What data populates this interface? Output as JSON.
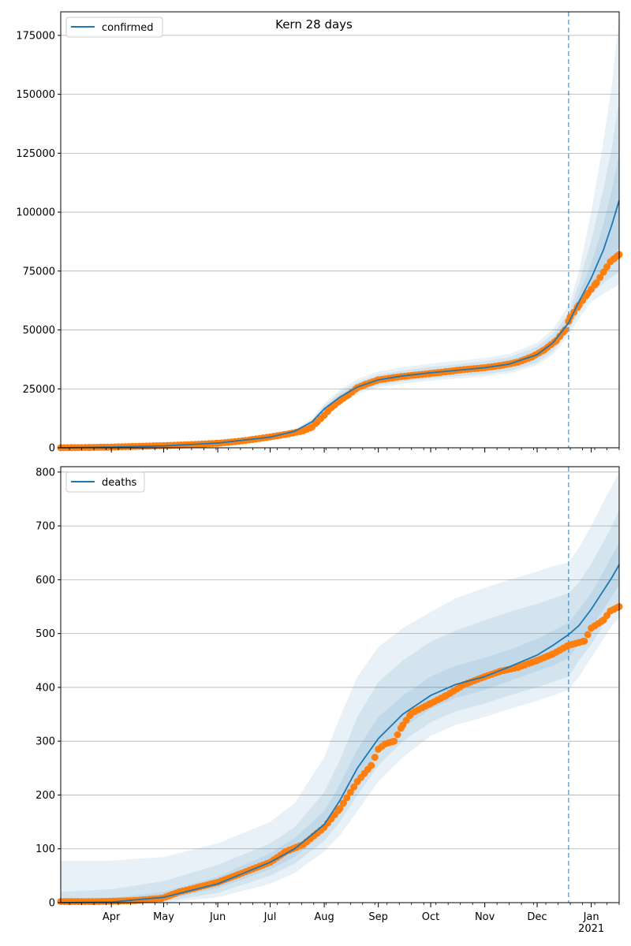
{
  "chart_data": [
    {
      "type": "line",
      "title": "Kern 28 days",
      "xlabel": "",
      "ylabel": "",
      "legend": {
        "position": "top-left",
        "entries": [
          "confirmed"
        ]
      },
      "grid": {
        "y": true,
        "x": false
      },
      "xlim": [
        "2020-03-03",
        "2021-01-17"
      ],
      "ylim": [
        0,
        185000
      ],
      "yticks": [
        0,
        25000,
        50000,
        75000,
        100000,
        125000,
        150000,
        175000
      ],
      "yticklabels": [
        "0",
        "25000",
        "50000",
        "75000",
        "100000",
        "125000",
        "150000",
        "175000"
      ],
      "forecast_start": "2020-12-19",
      "series": [
        {
          "name": "confirmed",
          "kind": "model",
          "color": "#1f77b4",
          "x": [
            "2020-03-03",
            "2020-04-01",
            "2020-05-01",
            "2020-06-01",
            "2020-07-01",
            "2020-07-15",
            "2020-07-25",
            "2020-08-01",
            "2020-08-10",
            "2020-08-20",
            "2020-09-01",
            "2020-09-15",
            "2020-10-01",
            "2020-10-15",
            "2020-11-01",
            "2020-11-15",
            "2020-12-01",
            "2020-12-10",
            "2020-12-19",
            "2020-12-25",
            "2021-01-01",
            "2021-01-08",
            "2021-01-13",
            "2021-01-17"
          ],
          "y": [
            0,
            300,
            800,
            2000,
            4500,
            7000,
            11000,
            16500,
            21500,
            25800,
            28800,
            30500,
            31800,
            32800,
            34000,
            35500,
            39500,
            44500,
            53000,
            62000,
            72000,
            84000,
            95000,
            105000
          ],
          "bands": [
            {
              "lower": [
                0,
                250,
                700,
                1750,
                4000,
                6200,
                9800,
                14500,
                19000,
                22800,
                25600,
                27200,
                28400,
                29300,
                30300,
                31500,
                35000,
                39500,
                47500,
                55000,
                62000,
                65500,
                67500,
                69000
              ],
              "upper": [
                0,
                350,
                900,
                2300,
                5100,
                7800,
                12300,
                18800,
                24500,
                29200,
                32400,
                34200,
                35700,
                36800,
                38100,
                39800,
                44500,
                50200,
                60500,
                75000,
                100000,
                130000,
                155000,
                183000
              ]
            },
            {
              "lower": [
                0,
                260,
                720,
                1820,
                4150,
                6450,
                10200,
                15100,
                19800,
                23700,
                26600,
                28200,
                29400,
                30300,
                31300,
                32600,
                36200,
                40900,
                49500,
                57500,
                65000,
                70000,
                72500,
                74500
              ],
              "upper": [
                0,
                340,
                880,
                2200,
                4900,
                7550,
                11850,
                18000,
                23400,
                27900,
                31000,
                32800,
                34300,
                35300,
                36700,
                38400,
                42900,
                48300,
                57000,
                70000,
                88000,
                110000,
                128000,
                148000
              ]
            },
            {
              "lower": [
                0,
                275,
                750,
                1900,
                4300,
                6700,
                10600,
                15800,
                20600,
                24700,
                27600,
                29300,
                30500,
                31500,
                32600,
                34000,
                37800,
                42600,
                51200,
                59500,
                68000,
                75500,
                80500,
                85000
              ],
              "upper": [
                0,
                325,
                850,
                2100,
                4700,
                7300,
                11400,
                17200,
                22400,
                26900,
                30000,
                31700,
                33100,
                34100,
                35400,
                37000,
                41200,
                46400,
                54800,
                65500,
                78000,
                95000,
                110000,
                125000
              ]
            }
          ]
        },
        {
          "name": "",
          "kind": "observed",
          "color": "#ff7f0e",
          "x": [
            "2020-03-03",
            "2020-03-20",
            "2020-04-01",
            "2020-04-15",
            "2020-05-01",
            "2020-05-15",
            "2020-06-01",
            "2020-06-15",
            "2020-07-01",
            "2020-07-10",
            "2020-07-20",
            "2020-07-25",
            "2020-07-28",
            "2020-08-01",
            "2020-08-05",
            "2020-08-10",
            "2020-08-15",
            "2020-08-20",
            "2020-08-25",
            "2020-09-01",
            "2020-09-10",
            "2020-09-20",
            "2020-10-01",
            "2020-10-10",
            "2020-10-20",
            "2020-11-01",
            "2020-11-10",
            "2020-11-20",
            "2020-11-28",
            "2020-12-05",
            "2020-12-12",
            "2020-12-17",
            "2020-12-20",
            "2020-12-25",
            "2020-12-30",
            "2021-01-04",
            "2021-01-08",
            "2021-01-12",
            "2021-01-17"
          ],
          "y": [
            0,
            150,
            300,
            600,
            900,
            1300,
            1900,
            2900,
            4600,
            5700,
            7200,
            8800,
            11000,
            13800,
            17000,
            20000,
            22500,
            25500,
            27000,
            28800,
            29800,
            30700,
            31500,
            32300,
            33200,
            34000,
            34900,
            36300,
            38600,
            41500,
            45500,
            50000,
            55500,
            60500,
            65500,
            70000,
            74500,
            79000,
            82000
          ]
        }
      ]
    },
    {
      "type": "line",
      "title": "",
      "xlabel": "",
      "ylabel": "",
      "legend": {
        "position": "top-left",
        "entries": [
          "deaths"
        ]
      },
      "grid": {
        "y": true,
        "x": false
      },
      "xlim": [
        "2020-03-03",
        "2021-01-17"
      ],
      "ylim": [
        0,
        810
      ],
      "yticks": [
        0,
        100,
        200,
        300,
        400,
        500,
        600,
        700,
        800
      ],
      "yticklabels": [
        "0",
        "100",
        "200",
        "300",
        "400",
        "500",
        "600",
        "700",
        "800"
      ],
      "xticks": [
        "2020-04-01",
        "2020-05-01",
        "2020-06-01",
        "2020-07-01",
        "2020-08-01",
        "2020-09-01",
        "2020-10-01",
        "2020-11-01",
        "2020-12-01",
        "2021-01-01"
      ],
      "xticklabels": [
        "Apr",
        "May",
        "Jun",
        "Jul",
        "Aug",
        "Sep",
        "Oct",
        "Nov",
        "Dec",
        "Jan\n2021"
      ],
      "forecast_start": "2020-12-19",
      "series": [
        {
          "name": "deaths",
          "kind": "model",
          "color": "#1f77b4",
          "x": [
            "2020-03-03",
            "2020-04-01",
            "2020-05-01",
            "2020-06-01",
            "2020-07-01",
            "2020-07-15",
            "2020-08-01",
            "2020-08-10",
            "2020-08-20",
            "2020-09-01",
            "2020-09-15",
            "2020-10-01",
            "2020-10-15",
            "2020-11-01",
            "2020-11-15",
            "2020-12-01",
            "2020-12-10",
            "2020-12-19",
            "2020-12-25",
            "2021-01-01",
            "2021-01-08",
            "2021-01-13",
            "2021-01-17"
          ],
          "y": [
            0,
            1,
            10,
            35,
            75,
            100,
            145,
            190,
            250,
            305,
            350,
            385,
            405,
            420,
            438,
            460,
            478,
            498,
            515,
            545,
            580,
            605,
            628
          ],
          "bands": [
            {
              "lower": [
                0,
                0,
                0,
                10,
                35,
                55,
                95,
                125,
                170,
                225,
                270,
                310,
                330,
                345,
                360,
                375,
                385,
                395,
                420,
                455,
                490,
                515,
                530
              ],
              "upper": [
                78,
                78,
                85,
                110,
                150,
                185,
                270,
                345,
                420,
                475,
                510,
                540,
                565,
                585,
                600,
                615,
                625,
                632,
                660,
                700,
                745,
                775,
                800
              ]
            },
            {
              "lower": [
                0,
                0,
                2,
                18,
                50,
                72,
                115,
                150,
                200,
                255,
                300,
                335,
                355,
                370,
                385,
                400,
                410,
                420,
                450,
                480,
                515,
                540,
                555
              ],
              "upper": [
                20,
                25,
                40,
                70,
                110,
                140,
                205,
                265,
                345,
                410,
                450,
                485,
                505,
                525,
                540,
                555,
                565,
                575,
                595,
                630,
                670,
                700,
                730
              ]
            },
            {
              "lower": [
                0,
                0,
                5,
                27,
                62,
                85,
                130,
                170,
                225,
                280,
                325,
                360,
                380,
                395,
                412,
                430,
                440,
                455,
                480,
                510,
                545,
                570,
                590
              ],
              "upper": [
                5,
                8,
                20,
                48,
                92,
                120,
                170,
                220,
                285,
                345,
                385,
                420,
                440,
                455,
                470,
                490,
                505,
                520,
                545,
                575,
                615,
                645,
                670
              ]
            }
          ]
        },
        {
          "name": "",
          "kind": "observed",
          "color": "#ff7f0e",
          "x": [
            "2020-03-03",
            "2020-03-25",
            "2020-04-15",
            "2020-04-30",
            "2020-05-10",
            "2020-05-20",
            "2020-06-01",
            "2020-06-15",
            "2020-07-01",
            "2020-07-10",
            "2020-07-20",
            "2020-08-01",
            "2020-08-10",
            "2020-08-20",
            "2020-08-28",
            "2020-09-01",
            "2020-09-05",
            "2020-09-10",
            "2020-09-15",
            "2020-09-20",
            "2020-10-01",
            "2020-10-10",
            "2020-10-20",
            "2020-11-01",
            "2020-11-10",
            "2020-11-20",
            "2020-12-01",
            "2020-12-10",
            "2020-12-19",
            "2020-12-28",
            "2021-01-01",
            "2021-01-08",
            "2021-01-12",
            "2021-01-17"
          ],
          "y": [
            2,
            2,
            4,
            8,
            20,
            28,
            38,
            55,
            75,
            95,
            108,
            140,
            175,
            225,
            255,
            285,
            295,
            300,
            330,
            352,
            370,
            385,
            405,
            420,
            430,
            437,
            450,
            462,
            478,
            486,
            510,
            525,
            542,
            550
          ]
        }
      ]
    }
  ]
}
